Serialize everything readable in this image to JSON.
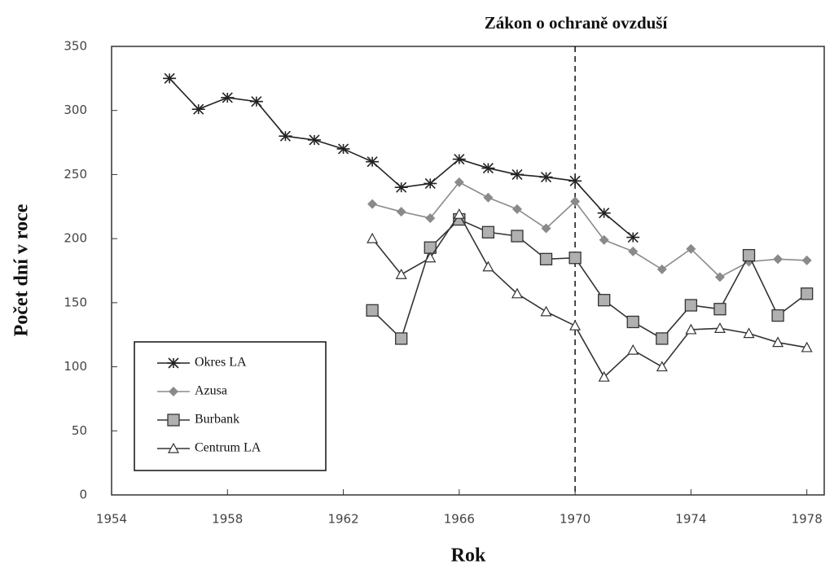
{
  "chart_data": {
    "type": "line",
    "annotation": {
      "text": "Zákon o ochraně ovzduší",
      "x": 1970
    },
    "xlabel": "Rok",
    "ylabel": "Počet dní v roce",
    "x": [
      1956,
      1957,
      1958,
      1959,
      1960,
      1961,
      1962,
      1963,
      1964,
      1965,
      1966,
      1967,
      1968,
      1969,
      1970,
      1971,
      1972,
      1973,
      1974,
      1975,
      1976,
      1977,
      1978
    ],
    "series": [
      {
        "name": "Okres LA",
        "color": "#222222",
        "marker": "asterisk",
        "values": [
          325,
          301,
          310,
          307,
          280,
          277,
          270,
          260,
          240,
          243,
          262,
          255,
          250,
          248,
          245,
          220,
          201,
          null,
          null,
          null,
          null,
          null,
          null
        ]
      },
      {
        "name": "Azusa",
        "color": "#8a8a8a",
        "marker": "diamond",
        "values": [
          null,
          null,
          null,
          null,
          null,
          null,
          null,
          227,
          221,
          216,
          244,
          232,
          223,
          208,
          229,
          199,
          190,
          176,
          192,
          170,
          182,
          184,
          183
        ]
      },
      {
        "name": "Burbank",
        "color": "#333333",
        "marker": "square",
        "values": [
          null,
          null,
          null,
          null,
          null,
          null,
          null,
          144,
          122,
          193,
          215,
          205,
          202,
          184,
          185,
          152,
          135,
          122,
          148,
          145,
          187,
          140,
          157
        ]
      },
      {
        "name": "Centrum LA",
        "color": "#333333",
        "marker": "triangle",
        "values": [
          null,
          null,
          null,
          null,
          null,
          null,
          null,
          200,
          172,
          185,
          219,
          178,
          157,
          143,
          132,
          92,
          113,
          100,
          129,
          130,
          126,
          119,
          115
        ]
      }
    ],
    "xlim": [
      1954,
      1978.6
    ],
    "xticks": [
      1954,
      1958,
      1962,
      1966,
      1970,
      1974,
      1978
    ],
    "ylim": [
      0,
      350
    ],
    "yticks": [
      0,
      50,
      100,
      150,
      200,
      250,
      300,
      350
    ],
    "legend": "lower left"
  }
}
